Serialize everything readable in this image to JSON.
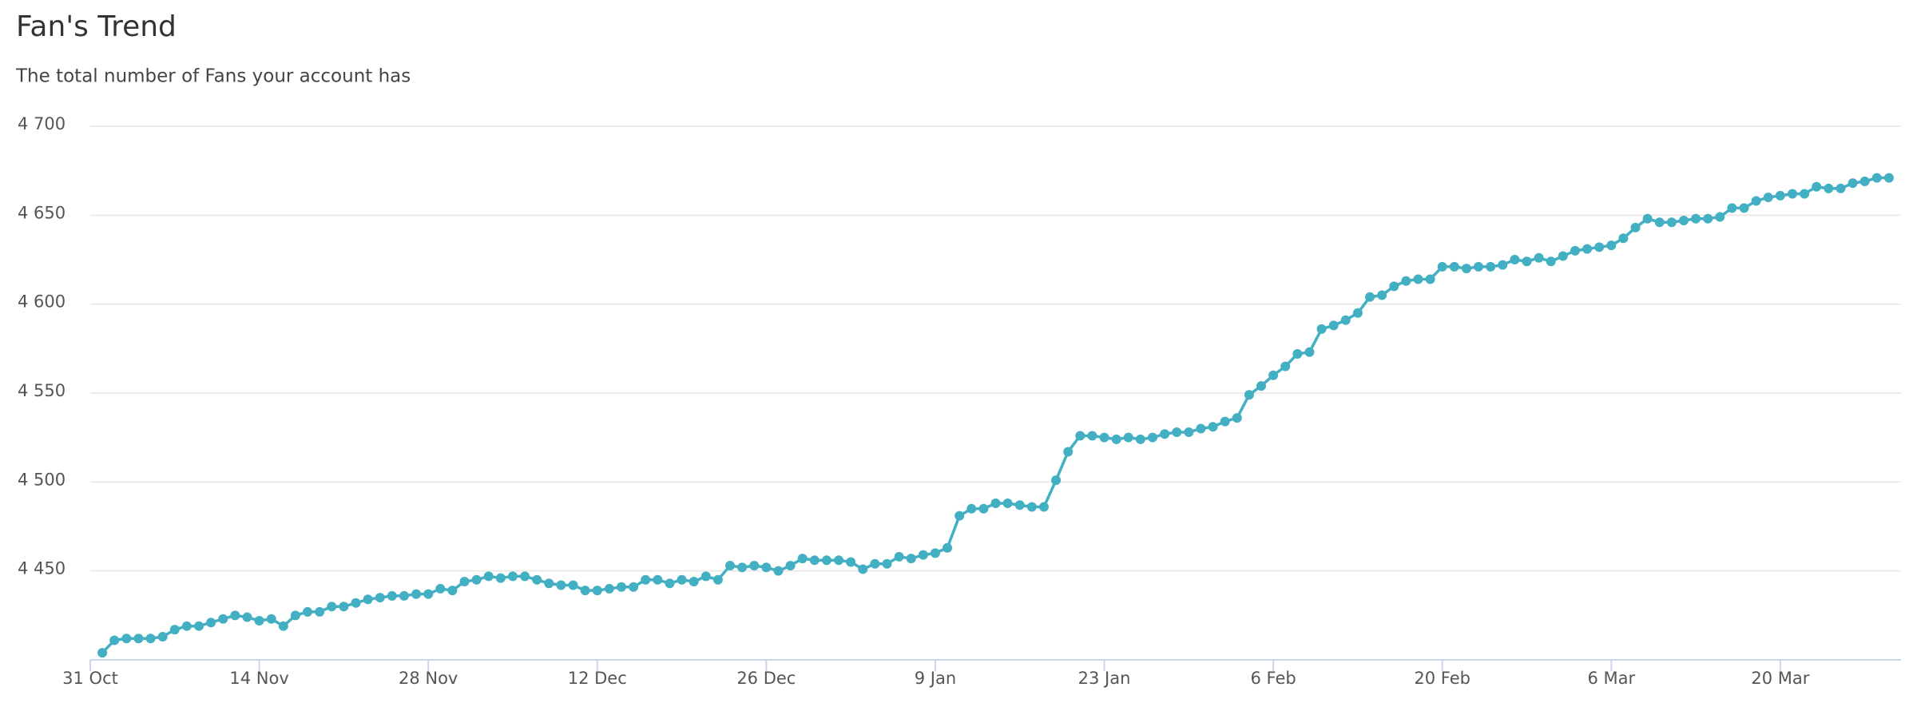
{
  "chart_data": {
    "type": "line",
    "title": "Fan's Trend",
    "subtitle": "The total number of Fans your account has",
    "x": [
      "1 Nov",
      "2 Nov",
      "3 Nov",
      "4 Nov",
      "5 Nov",
      "6 Nov",
      "7 Nov",
      "8 Nov",
      "9 Nov",
      "10 Nov",
      "11 Nov",
      "12 Nov",
      "13 Nov",
      "14 Nov",
      "15 Nov",
      "16 Nov",
      "17 Nov",
      "18 Nov",
      "19 Nov",
      "20 Nov",
      "21 Nov",
      "22 Nov",
      "23 Nov",
      "24 Nov",
      "25 Nov",
      "26 Nov",
      "27 Nov",
      "28 Nov",
      "29 Nov",
      "30 Nov",
      "1 Dec",
      "2 Dec",
      "3 Dec",
      "4 Dec",
      "5 Dec",
      "6 Dec",
      "7 Dec",
      "8 Dec",
      "9 Dec",
      "10 Dec",
      "11 Dec",
      "12 Dec",
      "13 Dec",
      "14 Dec",
      "15 Dec",
      "16 Dec",
      "17 Dec",
      "18 Dec",
      "19 Dec",
      "20 Dec",
      "21 Dec",
      "22 Dec",
      "23 Dec",
      "24 Dec",
      "25 Dec",
      "26 Dec",
      "27 Dec",
      "28 Dec",
      "29 Dec",
      "30 Dec",
      "31 Dec",
      "1 Jan",
      "2 Jan",
      "3 Jan",
      "4 Jan",
      "5 Jan",
      "6 Jan",
      "7 Jan",
      "8 Jan",
      "9 Jan",
      "10 Jan",
      "11 Jan",
      "12 Jan",
      "13 Jan",
      "14 Jan",
      "15 Jan",
      "16 Jan",
      "17 Jan",
      "18 Jan",
      "19 Jan",
      "20 Jan",
      "21 Jan",
      "22 Jan",
      "23 Jan",
      "24 Jan",
      "25 Jan",
      "26 Jan",
      "27 Jan",
      "28 Jan",
      "29 Jan",
      "30 Jan",
      "31 Jan",
      "1 Feb",
      "2 Feb",
      "3 Feb",
      "4 Feb",
      "5 Feb",
      "6 Feb",
      "7 Feb",
      "8 Feb",
      "9 Feb",
      "10 Feb",
      "11 Feb",
      "12 Feb",
      "13 Feb",
      "14 Feb",
      "15 Feb",
      "16 Feb",
      "17 Feb",
      "18 Feb",
      "19 Feb",
      "20 Feb",
      "21 Feb",
      "22 Feb",
      "23 Feb",
      "24 Feb",
      "25 Feb",
      "26 Feb",
      "27 Feb",
      "28 Feb",
      "1 Mar",
      "2 Mar",
      "3 Mar",
      "4 Mar",
      "5 Mar",
      "6 Mar",
      "7 Mar",
      "8 Mar",
      "9 Mar",
      "10 Mar",
      "11 Mar",
      "12 Mar",
      "13 Mar",
      "14 Mar",
      "15 Mar",
      "16 Mar",
      "17 Mar",
      "18 Mar",
      "19 Mar",
      "20 Mar",
      "21 Mar",
      "22 Mar",
      "23 Mar",
      "24 Mar",
      "25 Mar",
      "26 Mar",
      "27 Mar",
      "28 Mar",
      "29 Mar"
    ],
    "series": [
      {
        "name": "Fans",
        "color": "#43afc3",
        "values": [
          4404,
          4411,
          4412,
          4412,
          4412,
          4413,
          4417,
          4419,
          4419,
          4421,
          4423,
          4425,
          4424,
          4422,
          4423,
          4419,
          4425,
          4427,
          4427,
          4430,
          4430,
          4432,
          4434,
          4435,
          4436,
          4436,
          4437,
          4437,
          4440,
          4439,
          4444,
          4445,
          4447,
          4446,
          4447,
          4447,
          4445,
          4443,
          4442,
          4442,
          4439,
          4439,
          4440,
          4441,
          4441,
          4445,
          4445,
          4443,
          4445,
          4444,
          4447,
          4445,
          4453,
          4452,
          4453,
          4452,
          4450,
          4453,
          4457,
          4456,
          4456,
          4456,
          4455,
          4451,
          4454,
          4454,
          4458,
          4457,
          4459,
          4460,
          4463,
          4481,
          4485,
          4485,
          4488,
          4488,
          4487,
          4486,
          4486,
          4501,
          4517,
          4526,
          4526,
          4525,
          4524,
          4525,
          4524,
          4525,
          4527,
          4528,
          4528,
          4530,
          4531,
          4534,
          4536,
          4549,
          4554,
          4560,
          4565,
          4572,
          4573,
          4586,
          4588,
          4591,
          4595,
          4604,
          4605,
          4610,
          4613,
          4614,
          4614,
          4621,
          4621,
          4620,
          4621,
          4621,
          4622,
          4625,
          4624,
          4626,
          4624,
          4627,
          4630,
          4631,
          4632,
          4633,
          4637,
          4643,
          4648,
          4646,
          4646,
          4647,
          4648,
          4648,
          4649,
          4654,
          4654,
          4658,
          4660,
          4661,
          4662,
          4662,
          4666,
          4665,
          4665,
          4668,
          4669,
          4671,
          4671
        ]
      }
    ],
    "xlim": [
      "31 Oct",
      "30 Mar"
    ],
    "xticks": [
      "31 Oct",
      "14 Nov",
      "28 Nov",
      "12 Dec",
      "26 Dec",
      "9 Jan",
      "23 Jan",
      "6 Feb",
      "20 Feb",
      "6 Mar",
      "20 Mar"
    ],
    "ylim": [
      4400,
      4700
    ],
    "yticks": [
      {
        "value": 4450,
        "label": "4 450"
      },
      {
        "value": 4500,
        "label": "4 500"
      },
      {
        "value": 4550,
        "label": "4 550"
      },
      {
        "value": 4600,
        "label": "4 600"
      },
      {
        "value": 4650,
        "label": "4 650"
      },
      {
        "value": 4700,
        "label": "4 700"
      }
    ],
    "grid": true
  }
}
